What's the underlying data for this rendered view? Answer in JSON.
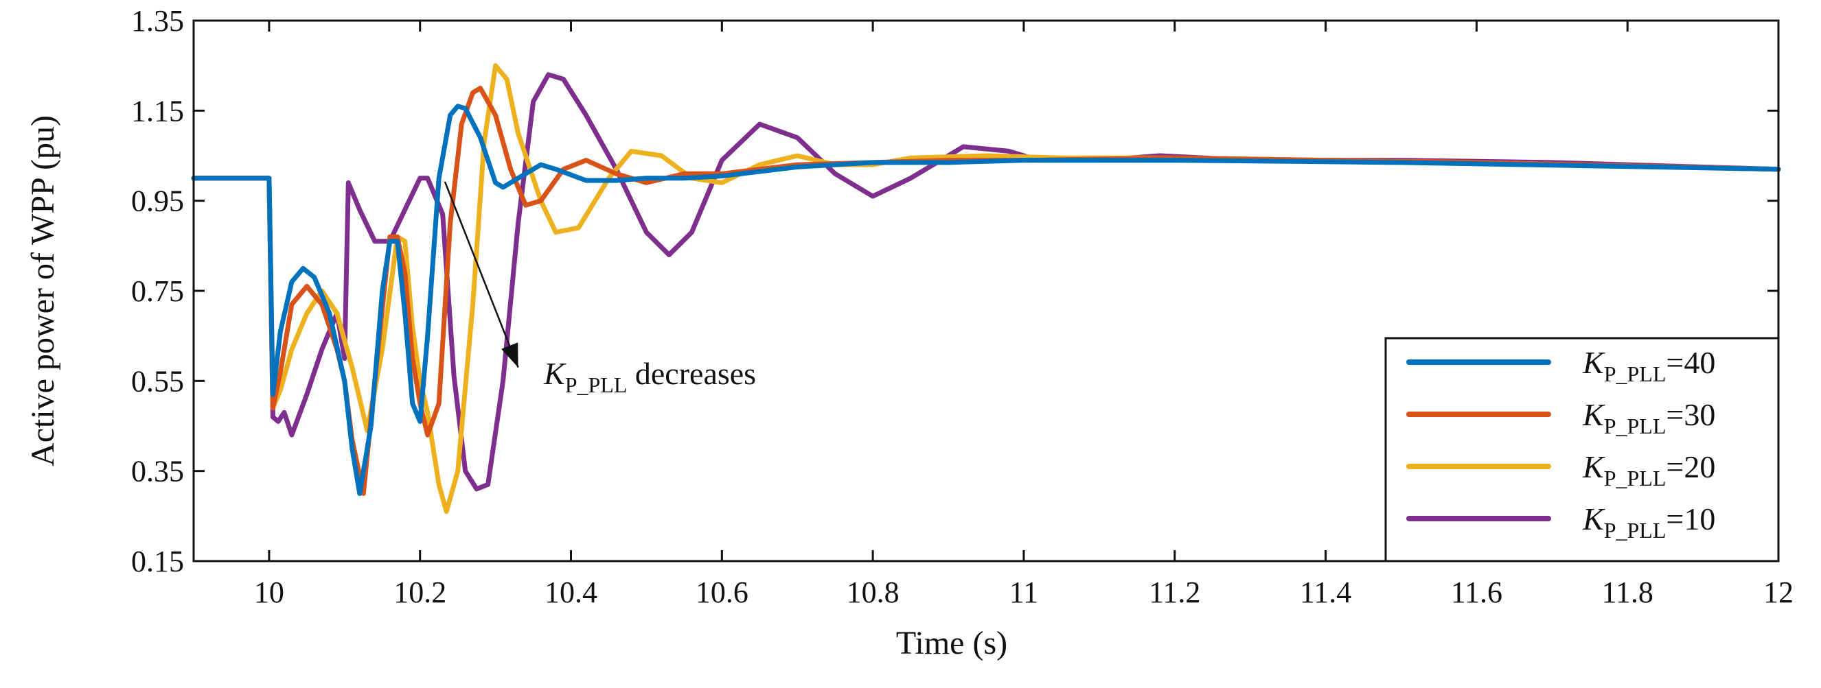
{
  "chart_data": {
    "type": "line",
    "title": "",
    "xlabel": "Time (s)",
    "ylabel": "Active power of WPP (pu)",
    "xlim": [
      9.9,
      12
    ],
    "ylim": [
      0.15,
      1.35
    ],
    "xticks": [
      10,
      10.2,
      10.4,
      10.6,
      10.8,
      11,
      11.2,
      11.4,
      11.6,
      11.8,
      12
    ],
    "xtick_labels": [
      "10",
      "10.2",
      "10.4",
      "10.6",
      "10.8",
      "11",
      "11.2",
      "11.4",
      "11.6",
      "11.8",
      "12"
    ],
    "yticks": [
      0.15,
      0.35,
      0.55,
      0.75,
      0.95,
      1.15,
      1.35
    ],
    "ytick_labels": [
      "0.15",
      "0.35",
      "0.55",
      "0.75",
      "0.95",
      "1.15",
      "1.35"
    ],
    "legend_position": "bottom-right",
    "annotation": {
      "symbol": "K",
      "subscript": "P_PLL",
      "text": " decreases",
      "arrow_from": [
        10.23,
        0.88
      ],
      "arrow_to": [
        10.33,
        0.58
      ]
    },
    "series": [
      {
        "name": "K_P_PLL=10",
        "legend_symbol": "K",
        "legend_subscript": "P_PLL",
        "legend_value": "=10",
        "color": "#7E2F8E",
        "points": [
          [
            9.9,
            1.0
          ],
          [
            10.0,
            1.0
          ],
          [
            10.005,
            0.47
          ],
          [
            10.012,
            0.46
          ],
          [
            10.02,
            0.48
          ],
          [
            10.03,
            0.43
          ],
          [
            10.05,
            0.52
          ],
          [
            10.07,
            0.62
          ],
          [
            10.09,
            0.7
          ],
          [
            10.1,
            0.6
          ],
          [
            10.105,
            0.99
          ],
          [
            10.12,
            0.93
          ],
          [
            10.14,
            0.86
          ],
          [
            10.16,
            0.86
          ],
          [
            10.18,
            0.93
          ],
          [
            10.2,
            1.0
          ],
          [
            10.21,
            1.0
          ],
          [
            10.23,
            0.92
          ],
          [
            10.245,
            0.56
          ],
          [
            10.26,
            0.35
          ],
          [
            10.275,
            0.31
          ],
          [
            10.29,
            0.32
          ],
          [
            10.31,
            0.55
          ],
          [
            10.33,
            0.9
          ],
          [
            10.35,
            1.17
          ],
          [
            10.37,
            1.23
          ],
          [
            10.39,
            1.22
          ],
          [
            10.42,
            1.14
          ],
          [
            10.46,
            1.02
          ],
          [
            10.5,
            0.88
          ],
          [
            10.53,
            0.83
          ],
          [
            10.56,
            0.88
          ],
          [
            10.6,
            1.04
          ],
          [
            10.65,
            1.12
          ],
          [
            10.7,
            1.09
          ],
          [
            10.75,
            1.01
          ],
          [
            10.8,
            0.96
          ],
          [
            10.85,
            1.0
          ],
          [
            10.92,
            1.07
          ],
          [
            10.98,
            1.06
          ],
          [
            11.02,
            1.04
          ],
          [
            11.1,
            1.04
          ],
          [
            11.18,
            1.05
          ],
          [
            11.3,
            1.04
          ],
          [
            11.5,
            1.04
          ],
          [
            11.7,
            1.035
          ],
          [
            12.0,
            1.02
          ]
        ]
      },
      {
        "name": "K_P_PLL=20",
        "legend_symbol": "K",
        "legend_subscript": "P_PLL",
        "legend_value": "=20",
        "color": "#EDB120",
        "points": [
          [
            9.9,
            1.0
          ],
          [
            10.0,
            1.0
          ],
          [
            10.005,
            0.49
          ],
          [
            10.015,
            0.53
          ],
          [
            10.03,
            0.62
          ],
          [
            10.05,
            0.7
          ],
          [
            10.07,
            0.75
          ],
          [
            10.09,
            0.7
          ],
          [
            10.1,
            0.64
          ],
          [
            10.11,
            0.58
          ],
          [
            10.13,
            0.44
          ],
          [
            10.15,
            0.62
          ],
          [
            10.17,
            0.87
          ],
          [
            10.18,
            0.86
          ],
          [
            10.19,
            0.67
          ],
          [
            10.2,
            0.55
          ],
          [
            10.21,
            0.48
          ],
          [
            10.225,
            0.32
          ],
          [
            10.235,
            0.26
          ],
          [
            10.25,
            0.35
          ],
          [
            10.27,
            0.72
          ],
          [
            10.285,
            1.08
          ],
          [
            10.3,
            1.25
          ],
          [
            10.315,
            1.22
          ],
          [
            10.33,
            1.1
          ],
          [
            10.36,
            0.95
          ],
          [
            10.38,
            0.88
          ],
          [
            10.41,
            0.89
          ],
          [
            10.45,
            1.0
          ],
          [
            10.48,
            1.06
          ],
          [
            10.52,
            1.05
          ],
          [
            10.56,
            1.0
          ],
          [
            10.6,
            0.99
          ],
          [
            10.65,
            1.03
          ],
          [
            10.7,
            1.05
          ],
          [
            10.75,
            1.03
          ],
          [
            10.8,
            1.03
          ],
          [
            10.85,
            1.045
          ],
          [
            10.95,
            1.05
          ],
          [
            11.05,
            1.045
          ],
          [
            11.2,
            1.045
          ],
          [
            11.4,
            1.04
          ],
          [
            11.6,
            1.035
          ],
          [
            12.0,
            1.02
          ]
        ]
      },
      {
        "name": "K_P_PLL=30",
        "legend_symbol": "K",
        "legend_subscript": "P_PLL",
        "legend_value": "=30",
        "color": "#D95319",
        "points": [
          [
            9.9,
            1.0
          ],
          [
            10.0,
            1.0
          ],
          [
            10.005,
            0.49
          ],
          [
            10.015,
            0.57
          ],
          [
            10.03,
            0.72
          ],
          [
            10.05,
            0.76
          ],
          [
            10.07,
            0.72
          ],
          [
            10.09,
            0.62
          ],
          [
            10.1,
            0.55
          ],
          [
            10.11,
            0.42
          ],
          [
            10.125,
            0.3
          ],
          [
            10.14,
            0.55
          ],
          [
            10.16,
            0.87
          ],
          [
            10.17,
            0.87
          ],
          [
            10.18,
            0.79
          ],
          [
            10.19,
            0.6
          ],
          [
            10.2,
            0.5
          ],
          [
            10.21,
            0.43
          ],
          [
            10.225,
            0.5
          ],
          [
            10.24,
            0.9
          ],
          [
            10.255,
            1.12
          ],
          [
            10.27,
            1.19
          ],
          [
            10.28,
            1.2
          ],
          [
            10.3,
            1.14
          ],
          [
            10.32,
            1.02
          ],
          [
            10.34,
            0.94
          ],
          [
            10.36,
            0.95
          ],
          [
            10.39,
            1.02
          ],
          [
            10.42,
            1.04
          ],
          [
            10.46,
            1.01
          ],
          [
            10.5,
            0.99
          ],
          [
            10.55,
            1.01
          ],
          [
            10.6,
            1.01
          ],
          [
            10.7,
            1.03
          ],
          [
            10.8,
            1.035
          ],
          [
            10.9,
            1.04
          ],
          [
            11.0,
            1.04
          ],
          [
            11.2,
            1.045
          ],
          [
            11.4,
            1.04
          ],
          [
            11.6,
            1.035
          ],
          [
            12.0,
            1.02
          ]
        ]
      },
      {
        "name": "K_P_PLL=40",
        "legend_symbol": "K",
        "legend_subscript": "P_PLL",
        "legend_value": "=40",
        "color": "#0072BD",
        "points": [
          [
            9.9,
            1.0
          ],
          [
            10.0,
            1.0
          ],
          [
            10.005,
            0.52
          ],
          [
            10.015,
            0.66
          ],
          [
            10.03,
            0.77
          ],
          [
            10.045,
            0.8
          ],
          [
            10.06,
            0.78
          ],
          [
            10.08,
            0.7
          ],
          [
            10.1,
            0.55
          ],
          [
            10.11,
            0.4
          ],
          [
            10.12,
            0.3
          ],
          [
            10.135,
            0.45
          ],
          [
            10.15,
            0.75
          ],
          [
            10.16,
            0.86
          ],
          [
            10.17,
            0.86
          ],
          [
            10.18,
            0.7
          ],
          [
            10.19,
            0.5
          ],
          [
            10.2,
            0.46
          ],
          [
            10.21,
            0.65
          ],
          [
            10.225,
            1.0
          ],
          [
            10.24,
            1.14
          ],
          [
            10.25,
            1.16
          ],
          [
            10.26,
            1.155
          ],
          [
            10.28,
            1.09
          ],
          [
            10.3,
            0.99
          ],
          [
            10.31,
            0.98
          ],
          [
            10.33,
            1.0
          ],
          [
            10.36,
            1.03
          ],
          [
            10.38,
            1.02
          ],
          [
            10.42,
            0.995
          ],
          [
            10.46,
            0.995
          ],
          [
            10.5,
            1.0
          ],
          [
            10.55,
            1.0
          ],
          [
            10.6,
            1.005
          ],
          [
            10.7,
            1.025
          ],
          [
            10.8,
            1.035
          ],
          [
            10.9,
            1.035
          ],
          [
            11.0,
            1.04
          ],
          [
            11.2,
            1.04
          ],
          [
            11.5,
            1.035
          ],
          [
            12.0,
            1.02
          ]
        ]
      }
    ],
    "legend_order": [
      "K_P_PLL=40",
      "K_P_PLL=30",
      "K_P_PLL=20",
      "K_P_PLL=10"
    ]
  }
}
